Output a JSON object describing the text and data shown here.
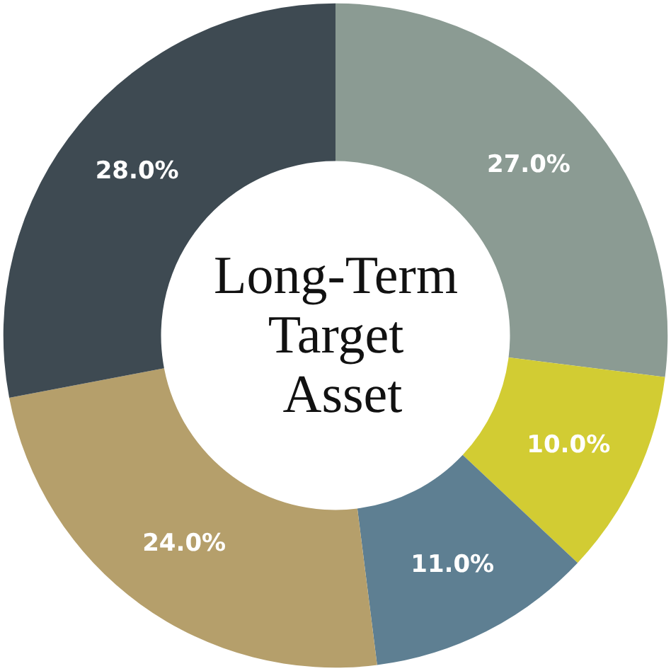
{
  "chart_data": {
    "type": "donut",
    "title": "Long-Term Target Asset",
    "categories": [
      null,
      null,
      null,
      null,
      null
    ],
    "values": [
      27,
      10,
      11,
      24,
      28
    ],
    "colors": [
      "#8b9b93",
      "#d2cc33",
      "#5e7f92",
      "#b59f6b",
      "#3e4a52"
    ],
    "value_labels": [
      "27.0%",
      "10.0%",
      "11.0%",
      "24.0%",
      "28.0%"
    ]
  }
}
